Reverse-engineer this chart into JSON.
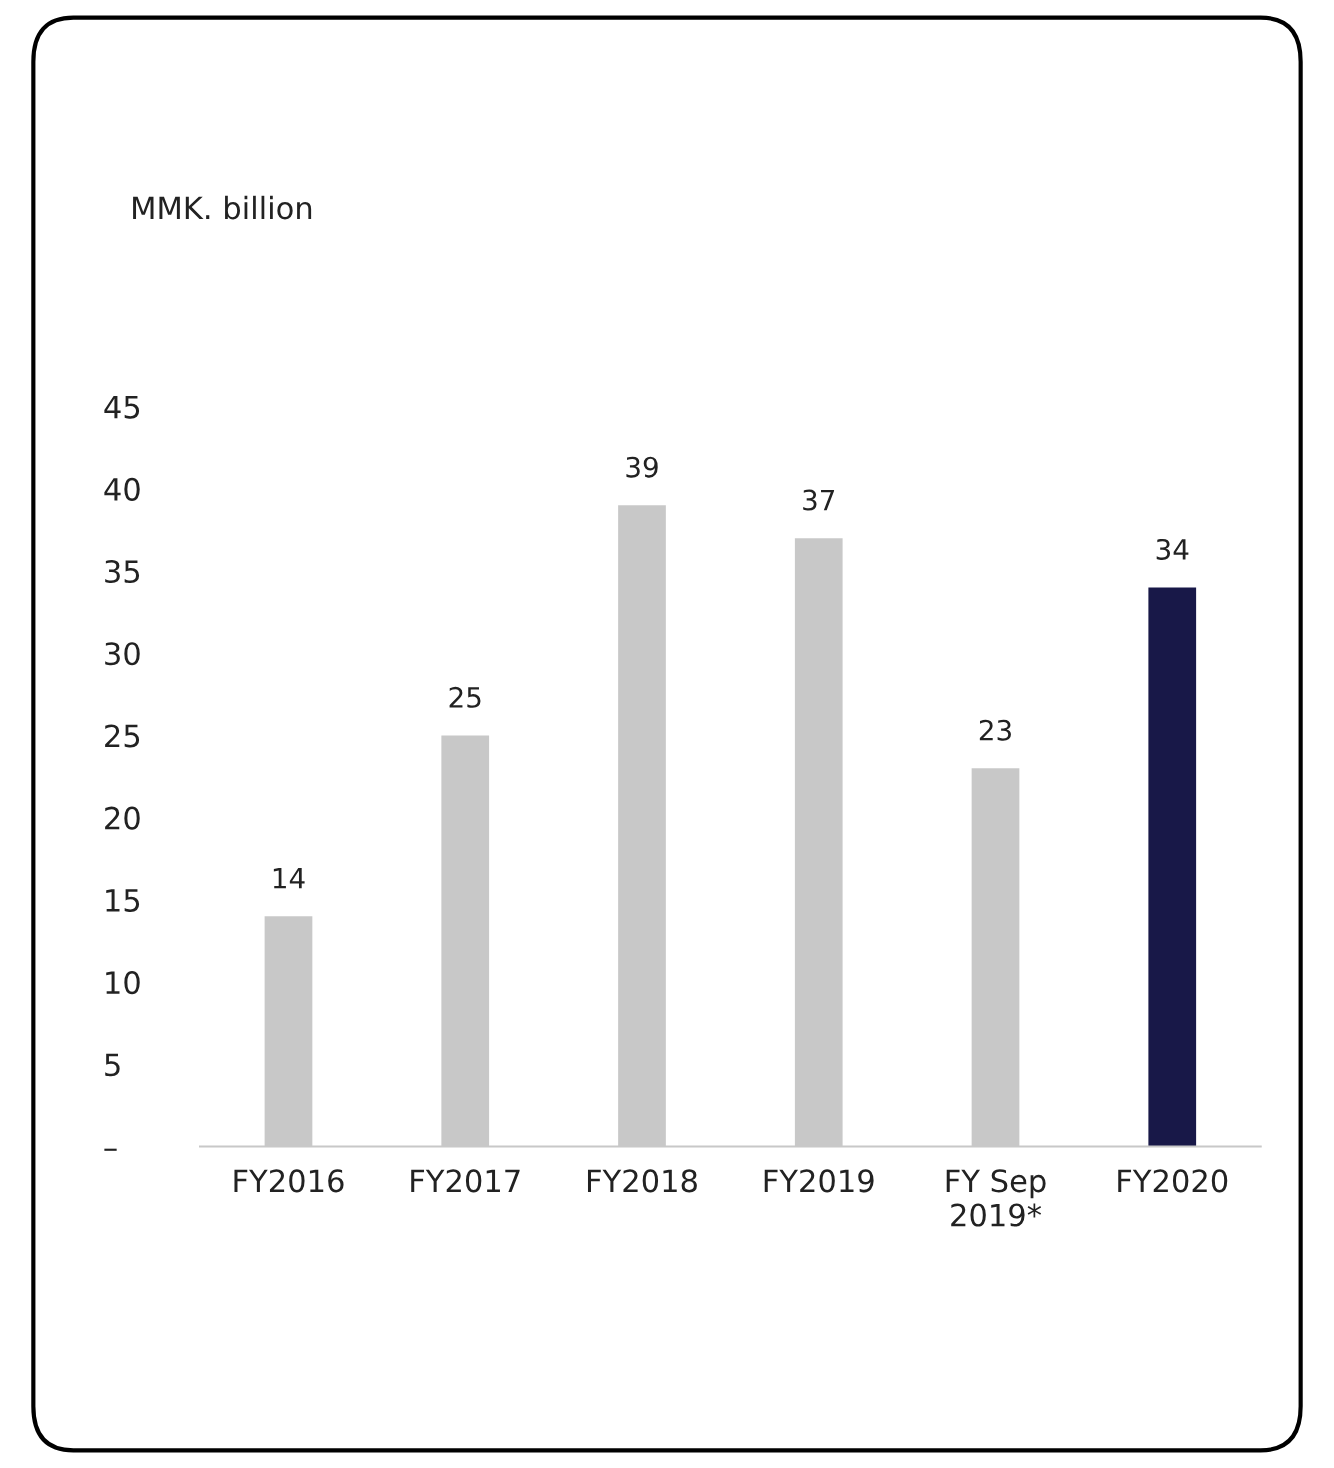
{
  "chart_data": {
    "type": "bar",
    "annotations": [
      "MMK. billion"
    ],
    "categories": [
      "FY2016",
      "FY2017",
      "FY2018",
      "FY2019",
      "FY Sep\n2019*",
      "FY2020"
    ],
    "values": [
      14,
      25,
      39,
      37,
      23,
      34
    ],
    "colors": [
      "#c8c8c8",
      "#c8c8c8",
      "#c8c8c8",
      "#c8c8c8",
      "#c8c8c8",
      "#181848"
    ],
    "data_labels": true,
    "ylim": [
      0,
      45
    ],
    "yticks": [
      {
        "value": 0,
        "label": "–"
      },
      5,
      10,
      15,
      20,
      25,
      30,
      35,
      40,
      45
    ],
    "grid": false,
    "legend": false
  }
}
